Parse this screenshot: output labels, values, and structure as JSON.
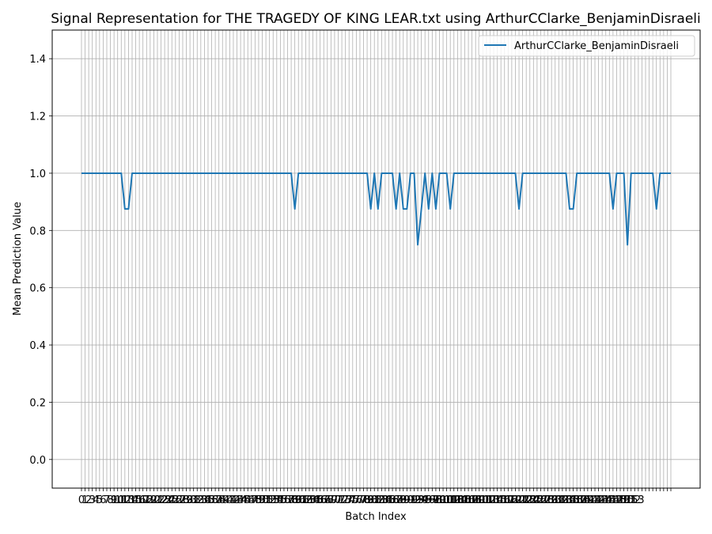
{
  "chart_data": {
    "type": "line",
    "title": "Signal Representation for THE TRAGEDY OF KING LEAR.txt using ArthurCClarke_BenjaminDisraeli",
    "xlabel": "Batch Index",
    "ylabel": "Mean Prediction Value",
    "ylim": [
      -0.1,
      1.5
    ],
    "yticks": [
      0.0,
      0.2,
      0.4,
      0.6,
      0.8,
      1.0,
      1.2,
      1.4
    ],
    "grid": true,
    "legend_position": "top-right",
    "series": [
      {
        "name": "ArthurCClarke_BenjaminDisraeli",
        "color": "#1f77b4",
        "values": [
          1,
          1,
          1,
          1,
          1,
          1,
          1,
          1,
          1,
          1,
          1,
          1,
          0.875,
          0.875,
          1,
          1,
          1,
          1,
          1,
          1,
          1,
          1,
          1,
          1,
          1,
          1,
          1,
          1,
          1,
          1,
          1,
          1,
          1,
          1,
          1,
          1,
          1,
          1,
          1,
          1,
          1,
          1,
          1,
          1,
          1,
          1,
          1,
          1,
          1,
          1,
          1,
          1,
          1,
          1,
          1,
          1,
          1,
          1,
          1,
          0.875,
          1,
          1,
          1,
          1,
          1,
          1,
          1,
          1,
          1,
          1,
          1,
          1,
          1,
          1,
          1,
          1,
          1,
          1,
          1,
          1,
          0.875,
          1,
          0.875,
          1,
          1,
          1,
          1,
          0.875,
          1,
          0.875,
          0.875,
          1,
          1,
          0.75,
          0.875,
          1,
          0.875,
          1,
          0.875,
          1,
          1,
          1,
          0.875,
          1,
          1,
          1,
          1,
          1,
          1,
          1,
          1,
          1,
          1,
          1,
          1,
          1,
          1,
          1,
          1,
          1,
          1,
          0.875,
          1,
          1,
          1,
          1,
          1,
          1,
          1,
          1,
          1,
          1,
          1,
          1,
          1,
          0.875,
          0.875,
          1,
          1,
          1,
          1,
          1,
          1,
          1,
          1,
          1,
          1,
          0.875,
          1,
          1,
          1,
          0.75,
          1,
          1,
          1,
          1,
          1,
          1,
          1,
          0.875,
          1,
          1,
          1,
          1
        ]
      }
    ],
    "x_tick_labels": [
      "0",
      "1",
      "2",
      "3",
      "4",
      "5",
      "6",
      "7",
      "8",
      "9",
      "10",
      "11",
      "12",
      "13",
      "14",
      "15",
      "16",
      "17",
      "18",
      "19",
      "20",
      "21",
      "22",
      "23",
      "24",
      "25",
      "26",
      "27",
      "28",
      "29",
      "30",
      "31",
      "32",
      "33",
      "34",
      "35",
      "36",
      "37",
      "38",
      "39",
      "40",
      "41",
      "42",
      "43",
      "44",
      "45",
      "46",
      "47",
      "48",
      "49",
      "50",
      "51",
      "52",
      "53",
      "54",
      "55",
      "56",
      "57",
      "58",
      "59",
      "60",
      "61",
      "62",
      "63",
      "64",
      "65",
      "66",
      "67",
      "68",
      "69",
      "70",
      "71",
      "72",
      "73",
      "74",
      "75",
      "76",
      "77",
      "78",
      "79",
      "80",
      "81",
      "82",
      "83",
      "84",
      "85",
      "86",
      "87",
      "88",
      "89",
      "90",
      "91",
      "92",
      "93",
      "94",
      "95",
      "96",
      "97",
      "98",
      "99",
      "100",
      "101",
      "102",
      "103",
      "104",
      "105",
      "106",
      "107",
      "108",
      "109",
      "110",
      "111",
      "112",
      "113",
      "114",
      "115",
      "116",
      "117",
      "118",
      "119",
      "120",
      "121",
      "122",
      "123",
      "124",
      "125",
      "126",
      "127",
      "128",
      "129",
      "130",
      "131",
      "132",
      "133",
      "134",
      "135",
      "136",
      "137",
      "138",
      "139",
      "140",
      "141",
      "142",
      "143",
      "144",
      "145",
      "146",
      "147",
      "148",
      "149",
      "150",
      "151",
      "152",
      "153"
    ]
  }
}
